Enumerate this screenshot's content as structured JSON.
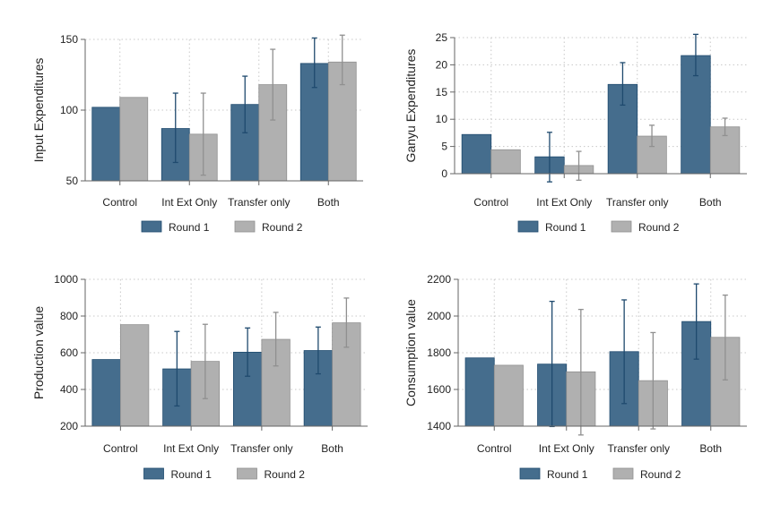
{
  "colors": {
    "round1": "#456d8d",
    "round1_dark": "#1f4a6e",
    "round2": "#b0b0b0",
    "round2_dark": "#909090"
  },
  "chart_data": [
    {
      "type": "bar",
      "ylabel": "Input Expenditures",
      "categories": [
        "Control",
        "Int Ext Only",
        "Transfer only",
        "Both"
      ],
      "ylim": [
        50,
        150
      ],
      "yticks": [
        50,
        100,
        150
      ],
      "legend": "bottom",
      "series": [
        {
          "name": "Round 1",
          "values": [
            102,
            87,
            104,
            133
          ],
          "ci_low": [
            null,
            63,
            84,
            116
          ],
          "ci_high": [
            null,
            112,
            124,
            151
          ]
        },
        {
          "name": "Round 2",
          "values": [
            109,
            83,
            118,
            134
          ],
          "ci_low": [
            null,
            54,
            93,
            118
          ],
          "ci_high": [
            null,
            112,
            143,
            153
          ]
        }
      ]
    },
    {
      "type": "bar",
      "ylabel": "Ganyu Expenditures",
      "categories": [
        "Control",
        "Int Ext Only",
        "Transfer only",
        "Both"
      ],
      "ylim": [
        0,
        25
      ],
      "yticks": [
        0,
        5,
        10,
        15,
        20,
        25
      ],
      "legend": "bottom",
      "series": [
        {
          "name": "Round 1",
          "values": [
            7.2,
            3.1,
            16.4,
            21.7
          ],
          "ci_low": [
            null,
            -1.5,
            12.6,
            18.0
          ],
          "ci_high": [
            null,
            7.6,
            20.4,
            25.6
          ]
        },
        {
          "name": "Round 2",
          "values": [
            4.4,
            1.5,
            6.9,
            8.6
          ],
          "ci_low": [
            null,
            -1.2,
            5.0,
            7.0
          ],
          "ci_high": [
            null,
            4.1,
            8.9,
            10.2
          ]
        }
      ]
    },
    {
      "type": "bar",
      "ylabel": "Production value",
      "categories": [
        "Control",
        "Int Ext Only",
        "Transfer only",
        "Both"
      ],
      "ylim": [
        200,
        1000
      ],
      "yticks": [
        200,
        400,
        600,
        800,
        1000
      ],
      "legend": "bottom",
      "series": [
        {
          "name": "Round 1",
          "values": [
            563,
            512,
            603,
            612
          ],
          "ci_low": [
            null,
            310,
            472,
            485
          ],
          "ci_high": [
            null,
            716,
            735,
            740
          ]
        },
        {
          "name": "Round 2",
          "values": [
            753,
            553,
            673,
            763
          ],
          "ci_low": [
            null,
            350,
            528,
            630
          ],
          "ci_high": [
            null,
            755,
            820,
            898
          ]
        }
      ]
    },
    {
      "type": "bar",
      "ylabel": "Consumption value",
      "categories": [
        "Control",
        "Int Ext Only",
        "Transfer only",
        "Both"
      ],
      "ylim": [
        1400,
        2200
      ],
      "yticks": [
        1400,
        1600,
        1800,
        2000,
        2200
      ],
      "legend": "bottom",
      "series": [
        {
          "name": "Round 1",
          "values": [
            1772,
            1738,
            1806,
            1970
          ],
          "ci_low": [
            null,
            1398,
            1523,
            1765
          ],
          "ci_high": [
            null,
            2080,
            2088,
            2175
          ]
        },
        {
          "name": "Round 2",
          "values": [
            1732,
            1696,
            1648,
            1884
          ],
          "ci_low": [
            null,
            1352,
            1385,
            1652
          ],
          "ci_high": [
            null,
            2036,
            1910,
            2114
          ]
        }
      ]
    }
  ]
}
